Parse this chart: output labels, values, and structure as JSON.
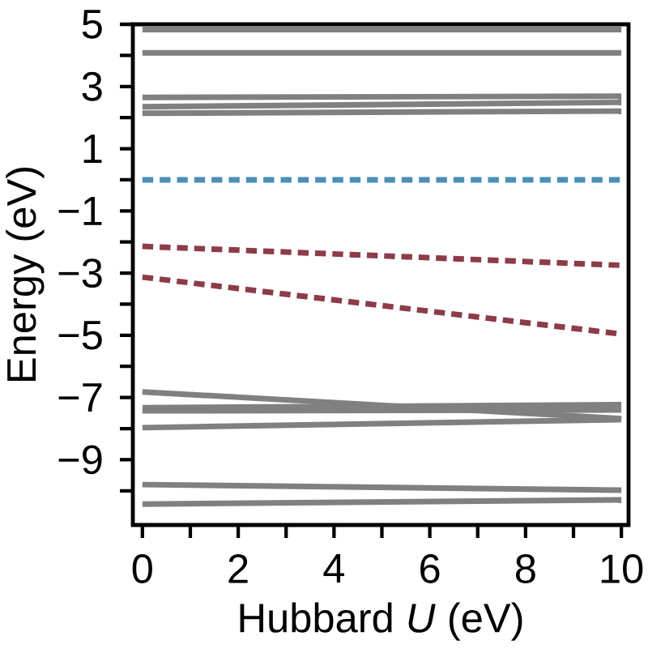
{
  "chart_data": {
    "type": "line",
    "xlabel": "Hubbard *U* (eV)",
    "ylabel": "Energy (eV)",
    "xlim": [
      -0.2,
      10.15
    ],
    "ylim": [
      -11.1,
      5
    ],
    "xticks": [
      0,
      {
        "value": 1,
        "label": null
      },
      2,
      {
        "value": 3,
        "label": null
      },
      4,
      {
        "value": 5,
        "label": null
      },
      6,
      {
        "value": 7,
        "label": null
      },
      8,
      {
        "value": 9,
        "label": null
      },
      10
    ],
    "yticks": [
      {
        "value": -10,
        "label": null
      },
      {
        "value": -9,
        "label": "−9"
      },
      {
        "value": -8,
        "label": null
      },
      {
        "value": -7,
        "label": "−7"
      },
      {
        "value": -6,
        "label": null
      },
      {
        "value": -5,
        "label": "−5"
      },
      {
        "value": -4,
        "label": null
      },
      {
        "value": -3,
        "label": "−3"
      },
      {
        "value": -2,
        "label": null
      },
      {
        "value": -1,
        "label": "−1"
      },
      {
        "value": 0,
        "label": null
      },
      1,
      {
        "value": 2,
        "label": null
      },
      3,
      {
        "value": 4,
        "label": null
      },
      5
    ],
    "x": [
      0,
      10
    ],
    "series": [
      {
        "color": "#808080",
        "line_style": "solid",
        "values": [
          4.83,
          4.83
        ]
      },
      {
        "color": "#808080",
        "line_style": "solid",
        "values": [
          4.08,
          4.08
        ]
      },
      {
        "color": "#808080",
        "line_style": "solid",
        "values": [
          2.65,
          2.69
        ]
      },
      {
        "color": "#808080",
        "line_style": "solid",
        "values": [
          2.35,
          2.49
        ]
      },
      {
        "color": "#808080",
        "line_style": "solid",
        "values": [
          2.14,
          2.21
        ]
      },
      {
        "color": "#4a8fb8",
        "line_style": "dashed",
        "values": [
          0,
          0
        ]
      },
      {
        "color": "#8e3b48",
        "line_style": "dashed",
        "values": [
          -2.14,
          -2.75
        ]
      },
      {
        "color": "#8e3b48",
        "line_style": "dashed",
        "values": [
          -3.13,
          -4.96
        ]
      },
      {
        "color": "#808080",
        "line_style": "solid",
        "values": [
          -6.82,
          -7.68
        ]
      },
      {
        "color": "#808080",
        "line_style": "solid",
        "values": [
          -7.33,
          -7.23
        ]
      },
      {
        "color": "#808080",
        "line_style": "solid",
        "values": [
          -7.43,
          -7.4
        ]
      },
      {
        "color": "#808080",
        "line_style": "solid",
        "values": [
          -7.97,
          -7.71
        ]
      },
      {
        "color": "#808080",
        "line_style": "solid",
        "values": [
          -9.8,
          -9.98
        ]
      },
      {
        "color": "#808080",
        "line_style": "solid",
        "values": [
          -10.43,
          -10.29
        ]
      }
    ]
  }
}
